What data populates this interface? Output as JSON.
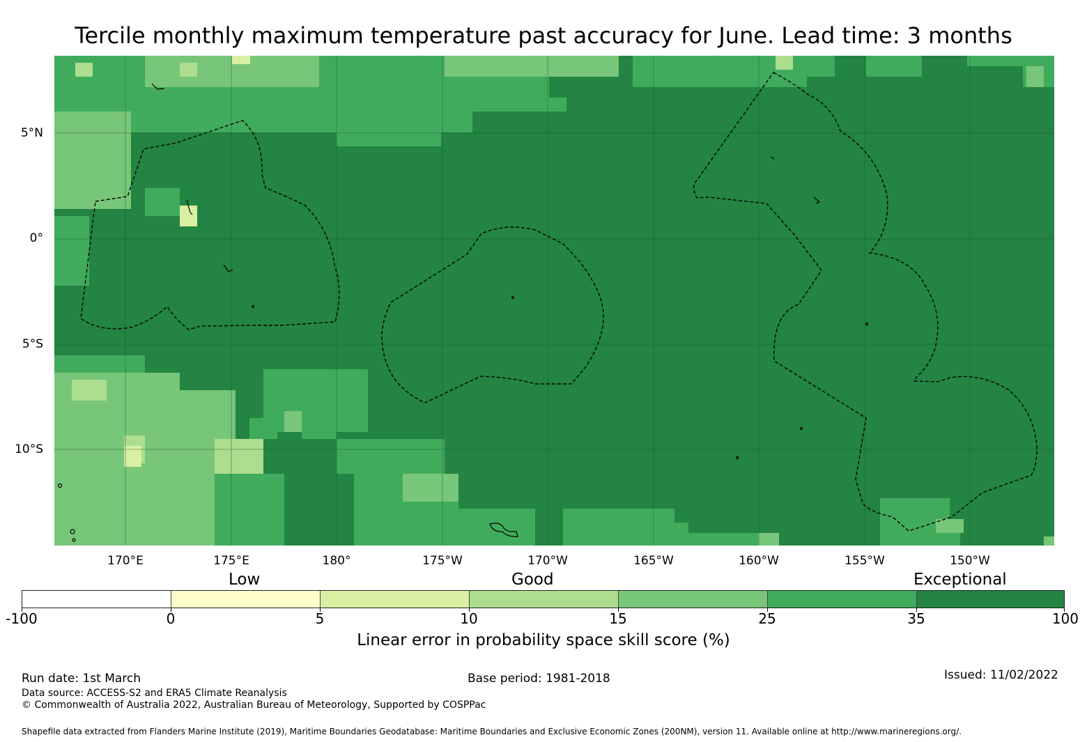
{
  "title": "Tercile monthly maximum temperature past accuracy for June. Lead time: 3 months",
  "map": {
    "latitude_labels": [
      "5°N",
      "0°",
      "5°S",
      "10°S"
    ],
    "longitude_labels": [
      "170°E",
      "175°E",
      "180°",
      "175°W",
      "170°W",
      "165°W",
      "160°W",
      "155°W",
      "150°W"
    ],
    "base_color": "#238443",
    "skill_colors": {
      "10-15": "#addd8e",
      "15-25": "#78c679",
      "25-35": "#41ab5d",
      "35-100": "#238443",
      "5-10": "#d9f0a3"
    }
  },
  "legend": {
    "categories": [
      "Low",
      "Good",
      "Exceptional"
    ],
    "ticks": [
      "-100",
      "0",
      "5",
      "10",
      "15",
      "25",
      "35",
      "100"
    ],
    "colors": [
      "#ffffff",
      "#ffffcc",
      "#d9f0a3",
      "#addd8e",
      "#78c679",
      "#41ab5d",
      "#238443"
    ],
    "title": "Linear error in probability space skill score (%)"
  },
  "footer": {
    "run_date": "Run date: 1st March",
    "base_period": "Base period: 1981-2018",
    "issued": "Issued: 11/02/2022",
    "data_source": "Data source: ACCESS-S2 and ERA5 Climate Reanalysis",
    "copyright": "© Commonwealth of Australia 2022, Australian Bureau of Meteorology, Supported by COSPPac",
    "shapefile_note": "Shapefile data extracted from Flanders Marine Institute (2019), Maritime Boundaries Geodatabase: Maritime Boundaries and Exclusive Economic Zones (200NM), version 11. Available online at http://www.marineregions.org/."
  }
}
